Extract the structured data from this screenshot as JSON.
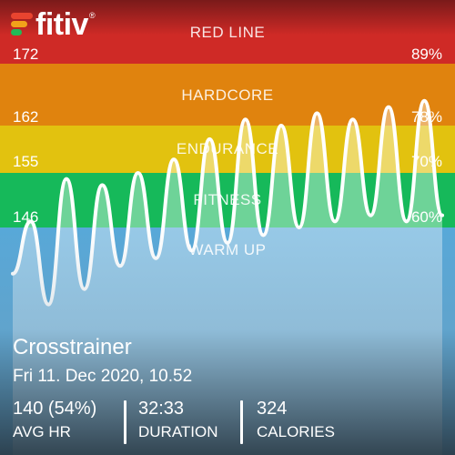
{
  "brand": {
    "name": "fitiv",
    "registered": "®"
  },
  "zones": [
    {
      "key": "red-line",
      "label": "RED LINE",
      "bpm": "172",
      "pct": "89%",
      "color": "#cf2a26"
    },
    {
      "key": "hardcore",
      "label": "HARDCORE",
      "bpm": "162",
      "pct": "78%",
      "color": "#e0830e"
    },
    {
      "key": "endurance",
      "label": "ENDURANCE",
      "bpm": "155",
      "pct": "70%",
      "color": "#e2c20f"
    },
    {
      "key": "fitness",
      "label": "FITNESS",
      "bpm": "146",
      "pct": "60%",
      "color": "#16b95a"
    },
    {
      "key": "warm-up",
      "label": "WARM UP",
      "bpm": "",
      "pct": "",
      "color": "#58a8d8"
    }
  ],
  "workout": {
    "name": "Crosstrainer",
    "date": "Fri 11. Dec 2020, 10.52"
  },
  "stats": [
    {
      "key": "avg-hr",
      "value": "140 (54%)",
      "label": "AVG HR"
    },
    {
      "key": "duration",
      "value": "32:33",
      "label": "DURATION"
    },
    {
      "key": "calories",
      "value": "324",
      "label": "CALORIES"
    }
  ],
  "chart_data": {
    "type": "line",
    "series": [
      {
        "values": [
          140,
          147,
          136,
          154,
          138,
          153,
          141,
          155,
          142,
          157,
          143,
          160,
          144,
          163,
          145,
          162,
          146,
          164,
          147,
          163,
          148,
          165,
          147,
          166,
          148
        ]
      }
    ],
    "zone_thresholds_bpm": [
      146,
      155,
      162,
      172
    ],
    "line_color": "#ffffff"
  }
}
